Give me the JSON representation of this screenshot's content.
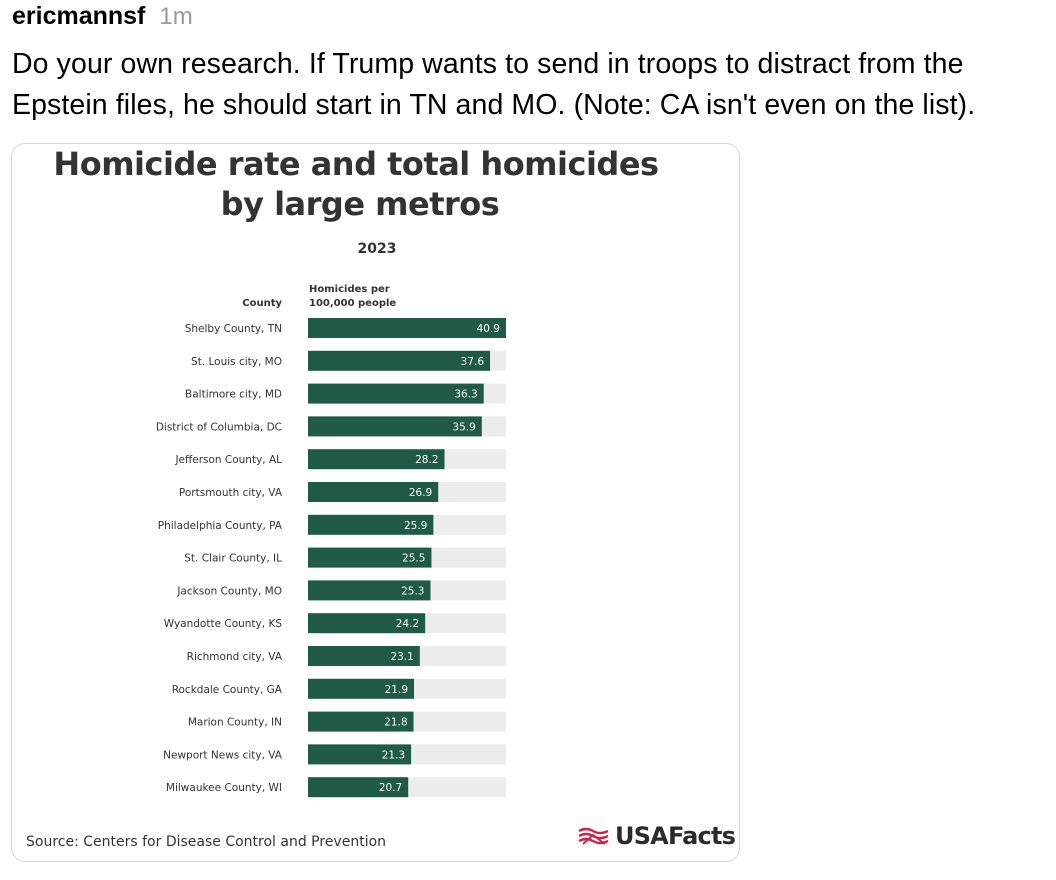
{
  "post": {
    "username": "ericmannsf",
    "timestamp": "1m",
    "text": "Do your own research. If Trump wants to send in troops to distract from the Epstein files, he should start in TN and MO. (Note: CA isn't even on the list)."
  },
  "chart_card": {
    "source": "Source: Centers for Disease Control and Prevention",
    "logo_text": "USAFacts"
  },
  "colors": {
    "bar": "#1e5a45",
    "track": "#ececec",
    "label": "#333333"
  },
  "chart_data": {
    "type": "bar",
    "orientation": "horizontal",
    "title_line1": "Homicide rate and total homicides",
    "title_line2": "by large metros",
    "subtitle": "2023",
    "category_header": "County",
    "value_header_line1": "Homicides per",
    "value_header_line2": "100,000 people",
    "xlim": [
      0,
      40.9
    ],
    "grid": false,
    "categories": [
      "Shelby County, TN",
      "St. Louis city, MO",
      "Baltimore city, MD",
      "District of Columbia, DC",
      "Jefferson County, AL",
      "Portsmouth city,  VA",
      "Philadelphia County, PA",
      "St. Clair County, IL",
      "Jackson County, MO",
      "Wyandotte County, KS",
      "Richmond city, VA",
      "Rockdale County, GA",
      "Marion County, IN",
      "Newport News city, VA",
      "Milwaukee County, WI"
    ],
    "values": [
      40.9,
      37.6,
      36.3,
      35.9,
      28.2,
      26.9,
      25.9,
      25.5,
      25.3,
      24.2,
      23.1,
      21.9,
      21.8,
      21.3,
      20.7
    ],
    "value_labels": [
      "40.9",
      "37.6",
      "36.3",
      "35.9",
      "28.2",
      "26.9",
      "25.9",
      "25.5",
      "25.3",
      "24.2",
      "23.1",
      "21.9",
      "21.8",
      "21.3",
      "20.7"
    ]
  }
}
